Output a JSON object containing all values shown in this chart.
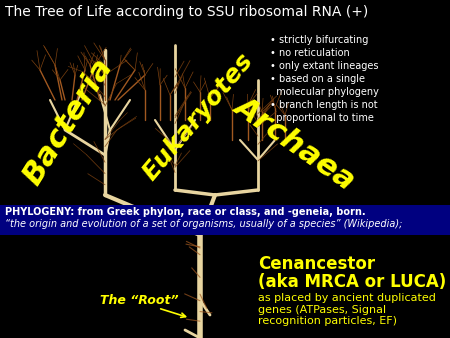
{
  "background_color": "#000000",
  "title": "The Tree of Life according to SSU ribosomal RNA (+)",
  "title_color": "#ffffff",
  "title_fontsize": 10,
  "bullet_points": [
    "• strictly bifurcating",
    "• no reticulation",
    "• only extant lineages",
    "• based on a single\n  molecular phylogeny",
    "• branch length is not\n  proportional to time"
  ],
  "bullet_color": "#ffffff",
  "bullet_fontsize": 7,
  "bacteria_label": "Bacteria",
  "eukaryotes_label": "Eukaryotes",
  "archaea_label": "Archaea",
  "domain_label_color": "#ffff00",
  "bacteria_fontsize": 22,
  "eukaryotes_fontsize": 18,
  "archaea_fontsize": 22,
  "phylogeny_line1": "PHYLOGENY: from Greek phylon, race or class, and -geneia, born.",
  "phylogeny_line2": "“the origin and evolution of a set of organisms, usually of a species” (Wikipedia);",
  "phylogeny_color": "#ffffff",
  "phylogeny_fontsize": 7,
  "phylogeny_band_color": "#000080",
  "root_label": "The “Root”",
  "root_label_color": "#ffff00",
  "root_label_fontsize": 9,
  "cenancestor_line1": "Cenancestor",
  "cenancestor_line2": "(aka MRCA or LUCA)",
  "cenancestor_line3": "as placed by ancient duplicated\ngenes (ATPases, Signal\nrecognition particles, EF)",
  "cenancestor_color": "#ffff00",
  "cenancestor_fontsize_large": 12,
  "cenancestor_fontsize_small": 8,
  "trunk_color": "#e8d5a0",
  "branch_color_dark": "#7a4010",
  "branch_color_mid": "#a05820"
}
